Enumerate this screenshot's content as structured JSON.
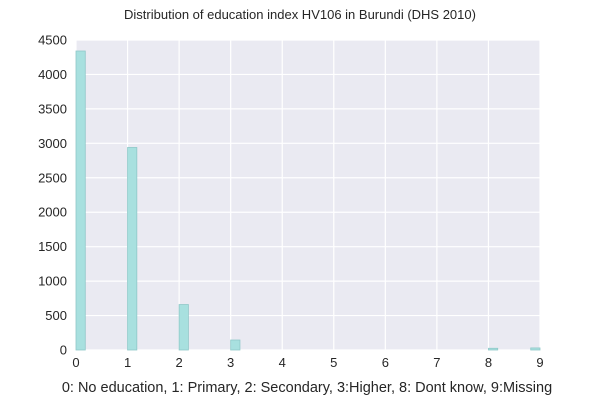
{
  "chart_data": {
    "type": "bar",
    "title": "Distribution of education index HV106 in Burundi (DHS 2010)",
    "xlabel": "0: No education, 1: Primary, 2: Secondary, 3:Higher, 8: Dont know, 9:Missing",
    "ylabel": "",
    "x": [
      0,
      1,
      2,
      3,
      8,
      9
    ],
    "values": [
      4340,
      2940,
      660,
      145,
      25,
      30
    ],
    "xlim": [
      0,
      9
    ],
    "ylim": [
      0,
      4500
    ],
    "xticks": [
      "0",
      "1",
      "2",
      "3",
      "4",
      "5",
      "6",
      "7",
      "8",
      "9"
    ],
    "yticks": [
      "0",
      "500",
      "1000",
      "1500",
      "2000",
      "2500",
      "3000",
      "3500",
      "4000",
      "4500"
    ],
    "grid": true,
    "colors": {
      "bar_fill": "#a8e0df",
      "bar_edge": "#8fc8c8",
      "background": "#eaeaf2",
      "grid": "#ffffff",
      "text": "#262626"
    }
  }
}
